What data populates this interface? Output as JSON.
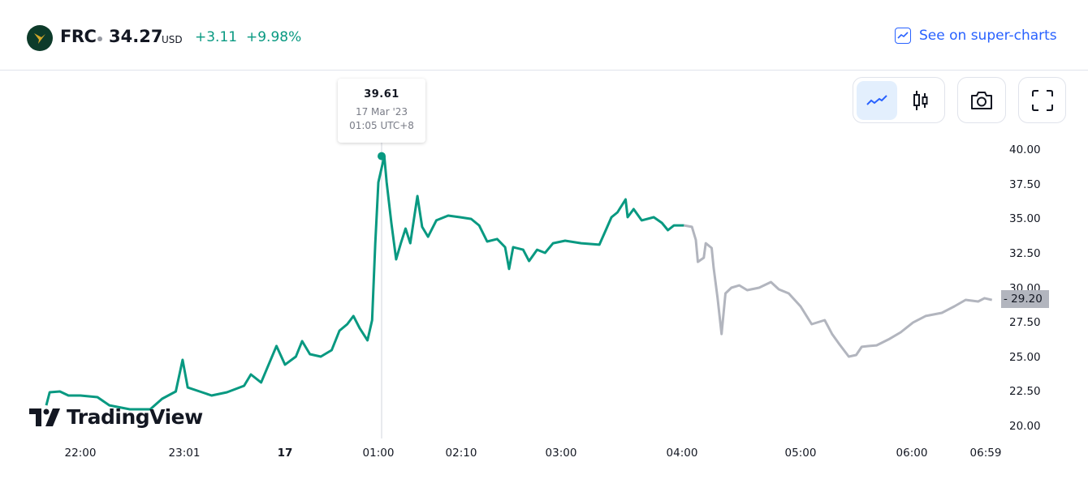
{
  "header": {
    "symbol": "FRC",
    "price": "34.27",
    "currency": "USD",
    "change": "+3.11",
    "change_pct": "+9.98%",
    "super_charts_link": "See on super-charts",
    "logo_color": "#0d3b2a"
  },
  "toolbar": {
    "line_chart_icon": "line-chart-icon",
    "candles_icon": "candlestick-icon",
    "snapshot_icon": "camera-icon",
    "fullscreen_icon": "fullscreen-icon",
    "active": "line"
  },
  "tooltip": {
    "value": "39.61",
    "date": "17 Mar '23",
    "time": "01:05 UTC+8"
  },
  "last_price_label": "- 29.20",
  "watermark": "TradingView",
  "chart_data": {
    "type": "line",
    "colors": {
      "session": "#089981",
      "extended": "#b2b5be"
    },
    "ylim": [
      20,
      40
    ],
    "y_ticks": [
      "40.00",
      "37.50",
      "35.00",
      "32.50",
      "30.00",
      "27.50",
      "25.00",
      "22.50",
      "20.00"
    ],
    "x_ticks": [
      "22:00",
      "23:01",
      "17",
      "01:00",
      "02:10",
      "03:00",
      "04:00",
      "05:00",
      "06:00",
      "06:59"
    ],
    "highlight": {
      "time": "01:05",
      "value": 39.61
    },
    "last_value": 29.2,
    "series": [
      {
        "segment": "regular",
        "points": [
          [
            "21:40",
            21.58
          ],
          [
            "21:42",
            22.52
          ],
          [
            "21:48",
            22.58
          ],
          [
            "21:53",
            22.29
          ],
          [
            "22:00",
            22.29
          ],
          [
            "22:10",
            22.17
          ],
          [
            "22:17",
            21.58
          ],
          [
            "22:29",
            21.29
          ],
          [
            "22:41",
            21.29
          ],
          [
            "22:48",
            22.05
          ],
          [
            "22:56",
            22.58
          ],
          [
            "23:00",
            24.87
          ],
          [
            "23:03",
            22.87
          ],
          [
            "23:10",
            22.58
          ],
          [
            "23:17",
            22.29
          ],
          [
            "23:26",
            22.52
          ],
          [
            "23:36",
            22.99
          ],
          [
            "23:40",
            23.81
          ],
          [
            "23:46",
            23.23
          ],
          [
            "23:55",
            25.87
          ],
          [
            "00:00",
            24.52
          ],
          [
            "00:07",
            25.1
          ],
          [
            "00:11",
            26.22
          ],
          [
            "00:16",
            25.28
          ],
          [
            "00:23",
            25.1
          ],
          [
            "00:30",
            25.57
          ],
          [
            "00:35",
            26.98
          ],
          [
            "00:40",
            27.45
          ],
          [
            "00:44",
            28.04
          ],
          [
            "00:48",
            27.16
          ],
          [
            "00:53",
            26.28
          ],
          [
            "00:56",
            27.74
          ],
          [
            "00:58",
            33.31
          ],
          [
            "01:00",
            37.71
          ],
          [
            "01:05",
            39.61
          ],
          [
            "01:07",
            37.71
          ],
          [
            "01:11",
            34.78
          ],
          [
            "01:15",
            32.14
          ],
          [
            "01:19",
            33.31
          ],
          [
            "01:23",
            34.37
          ],
          [
            "01:27",
            33.31
          ],
          [
            "01:33",
            36.72
          ],
          [
            "01:37",
            34.49
          ],
          [
            "01:42",
            33.78
          ],
          [
            "01:49",
            34.96
          ],
          [
            "01:59",
            35.31
          ],
          [
            "02:09",
            35.19
          ],
          [
            "02:15",
            35.07
          ],
          [
            "02:19",
            34.6
          ],
          [
            "02:23",
            33.43
          ],
          [
            "02:28",
            33.61
          ],
          [
            "02:32",
            33.02
          ],
          [
            "02:34",
            31.44
          ],
          [
            "02:36",
            33.02
          ],
          [
            "02:41",
            32.84
          ],
          [
            "02:44",
            32.02
          ],
          [
            "02:48",
            32.84
          ],
          [
            "02:52",
            32.61
          ],
          [
            "02:56",
            33.31
          ],
          [
            "03:02",
            33.49
          ],
          [
            "03:10",
            33.31
          ],
          [
            "03:19",
            33.2
          ],
          [
            "03:22",
            34.19
          ],
          [
            "03:25",
            35.19
          ],
          [
            "03:28",
            35.54
          ],
          [
            "03:32",
            36.48
          ],
          [
            "03:33",
            35.19
          ],
          [
            "03:36",
            35.78
          ],
          [
            "03:40",
            34.96
          ],
          [
            "03:46",
            35.19
          ],
          [
            "03:50",
            34.78
          ],
          [
            "03:53",
            34.25
          ],
          [
            "03:56",
            34.6
          ],
          [
            "04:01",
            34.6
          ]
        ]
      },
      {
        "segment": "extended",
        "points": [
          [
            "04:01",
            34.6
          ],
          [
            "04:05",
            34.49
          ],
          [
            "04:07",
            33.55
          ],
          [
            "04:08",
            31.96
          ],
          [
            "04:11",
            32.26
          ],
          [
            "04:12",
            33.31
          ],
          [
            "04:15",
            32.96
          ],
          [
            "04:16",
            31.55
          ],
          [
            "04:18",
            29.33
          ],
          [
            "04:20",
            26.74
          ],
          [
            "04:22",
            29.68
          ],
          [
            "04:25",
            30.09
          ],
          [
            "04:29",
            30.26
          ],
          [
            "04:33",
            29.91
          ],
          [
            "04:39",
            30.09
          ],
          [
            "04:45",
            30.5
          ],
          [
            "04:49",
            29.97
          ],
          [
            "04:54",
            29.68
          ],
          [
            "05:00",
            28.74
          ],
          [
            "05:06",
            27.45
          ],
          [
            "05:13",
            27.74
          ],
          [
            "05:17",
            26.74
          ],
          [
            "05:21",
            25.98
          ],
          [
            "05:26",
            25.1
          ],
          [
            "05:30",
            25.22
          ],
          [
            "05:33",
            25.81
          ],
          [
            "05:37",
            25.87
          ],
          [
            "05:41",
            25.92
          ],
          [
            "05:48",
            26.39
          ],
          [
            "05:54",
            26.86
          ],
          [
            "06:01",
            27.57
          ],
          [
            "06:11",
            28.04
          ],
          [
            "06:24",
            28.27
          ],
          [
            "06:34",
            28.74
          ],
          [
            "06:43",
            29.21
          ],
          [
            "06:53",
            29.09
          ],
          [
            "06:58",
            29.33
          ],
          [
            "07:04",
            29.2
          ]
        ]
      }
    ]
  }
}
